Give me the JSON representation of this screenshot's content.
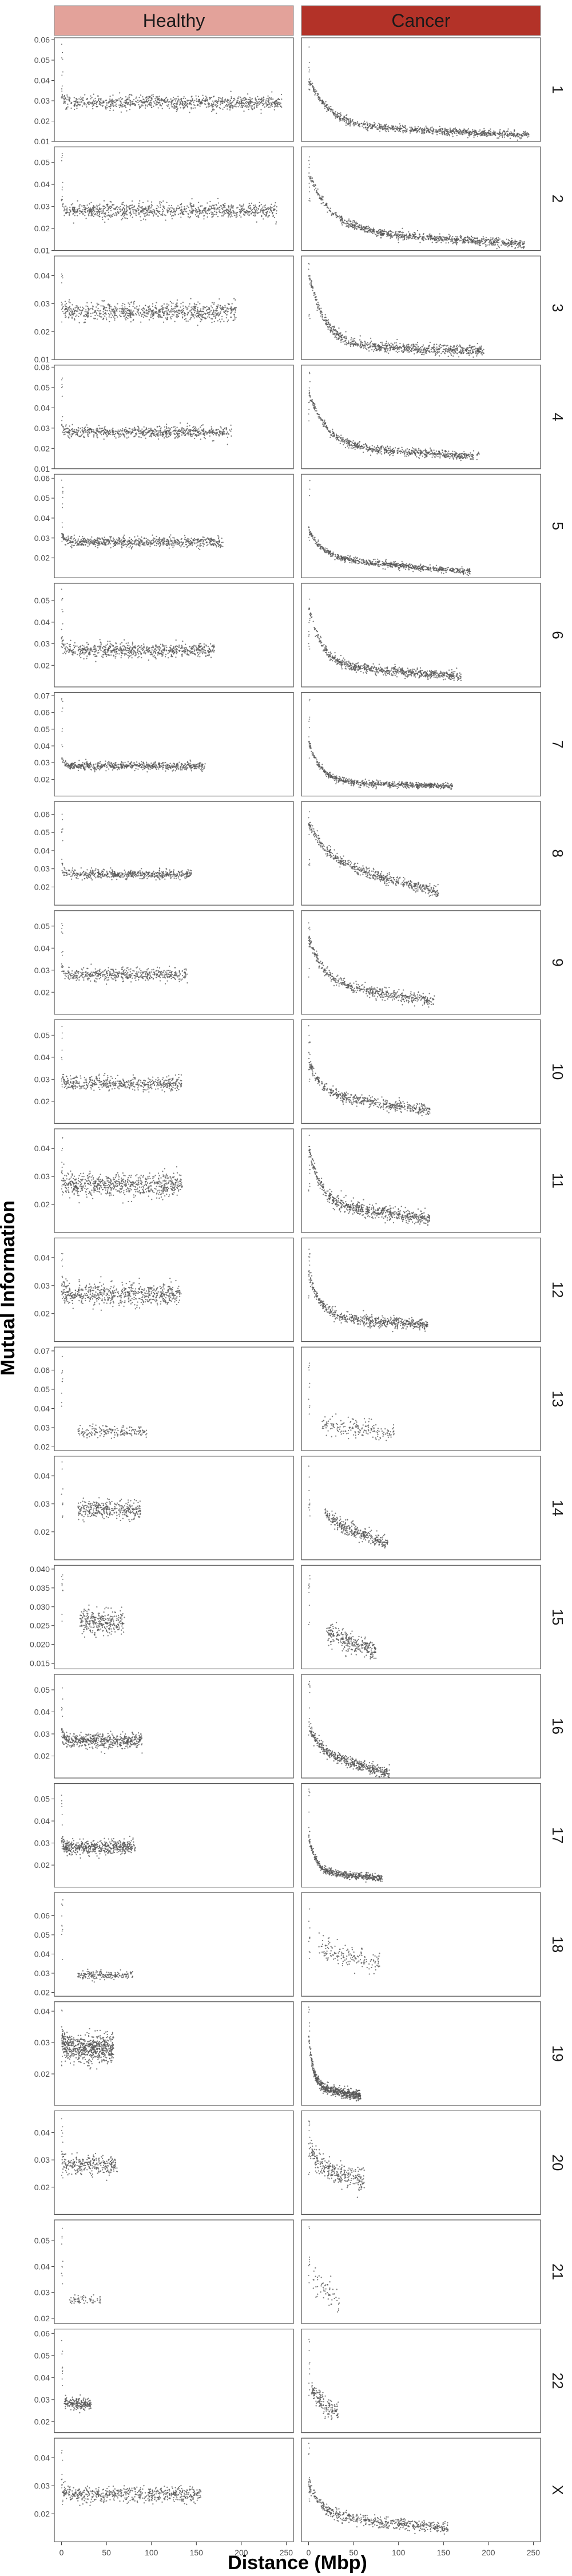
{
  "chart_data": {
    "type": "scatter",
    "title": "",
    "xlabel": "Distance (Mbp)",
    "ylabel": "Mutual Information",
    "columns": [
      "Healthy",
      "Cancer"
    ],
    "column_colors": [
      "#e3a29a",
      "#b33228"
    ],
    "point_color": "#555555",
    "grid": false,
    "x_ticks": [
      0,
      50,
      100,
      150,
      200,
      250
    ],
    "xlim": [
      -8,
      258
    ],
    "rows": [
      {
        "label": "1",
        "ylim": [
          0.01,
          0.061
        ],
        "yticks": [
          0.01,
          0.02,
          0.03,
          0.04,
          0.05,
          0.06
        ],
        "ytick_labels": [
          "0.01",
          "0.02",
          "0.03",
          "0.04",
          "0.05",
          "0.06"
        ],
        "healthy": {
          "xmax": 245,
          "d": 20,
          "tail_end": 0.029,
          "s": 0.0017,
          "n": 900
        },
        "cancer": {
          "xmax": 245,
          "h": 0.023,
          "tau": 22,
          "tail_start": 0.018,
          "tail_end": 0.013,
          "s": 0.0009,
          "n": 900
        }
      },
      {
        "label": "2",
        "ylim": [
          0.01,
          0.057
        ],
        "yticks": [
          0.01,
          0.02,
          0.03,
          0.04,
          0.05
        ],
        "ytick_labels": [
          "0.01",
          "0.02",
          "0.03",
          "0.04",
          "0.05"
        ],
        "healthy": {
          "xmax": 240,
          "d": 18,
          "tail_end": 0.028,
          "s": 0.0017,
          "n": 900
        },
        "cancer": {
          "xmax": 240,
          "h": 0.026,
          "tau": 25,
          "tail_start": 0.019,
          "tail_end": 0.013,
          "s": 0.0009,
          "n": 900
        }
      },
      {
        "label": "3",
        "ylim": [
          0.01,
          0.047
        ],
        "yticks": [
          0.01,
          0.02,
          0.03,
          0.04
        ],
        "ytick_labels": [
          "0.01",
          "0.02",
          "0.03",
          "0.04"
        ],
        "healthy": {
          "xmax": 195,
          "d": 17,
          "tail_end": 0.027,
          "s": 0.0016,
          "n": 800
        },
        "cancer": {
          "xmax": 195,
          "h": 0.026,
          "tau": 18,
          "tail_start": 0.015,
          "tail_end": 0.013,
          "s": 0.0009,
          "n": 800
        }
      },
      {
        "label": "4",
        "ylim": [
          0.01,
          0.061
        ],
        "yticks": [
          0.01,
          0.02,
          0.03,
          0.04,
          0.05,
          0.06
        ],
        "ytick_labels": [
          "0.01",
          "0.02",
          "0.03",
          "0.04",
          "0.05",
          "0.06"
        ],
        "healthy": {
          "xmax": 190,
          "d": 15,
          "tail_end": 0.028,
          "s": 0.0014,
          "n": 700
        },
        "cancer": {
          "xmax": 190,
          "h": 0.027,
          "tau": 20,
          "tail_start": 0.021,
          "tail_end": 0.016,
          "s": 0.001,
          "n": 700
        }
      },
      {
        "label": "5",
        "ylim": [
          0.01,
          0.062
        ],
        "yticks": [
          0.02,
          0.03,
          0.04,
          0.05,
          0.06
        ],
        "ytick_labels": [
          "0.02",
          "0.03",
          "0.04",
          "0.05",
          "0.06"
        ],
        "healthy": {
          "xmax": 180,
          "d": 15,
          "tail_end": 0.028,
          "s": 0.0013,
          "n": 700
        },
        "cancer": {
          "xmax": 180,
          "h": 0.014,
          "tau": 16,
          "tail_start": 0.02,
          "tail_end": 0.013,
          "s": 0.0008,
          "n": 700
        }
      },
      {
        "label": "6",
        "ylim": [
          0.01,
          0.058
        ],
        "yticks": [
          0.02,
          0.03,
          0.04,
          0.05
        ],
        "ytick_labels": [
          "0.02",
          "0.03",
          "0.04",
          "0.05"
        ],
        "healthy": {
          "xmax": 170,
          "d": 16,
          "tail_end": 0.027,
          "s": 0.0017,
          "n": 700
        },
        "cancer": {
          "xmax": 170,
          "h": 0.027,
          "tau": 15,
          "tail_start": 0.02,
          "tail_end": 0.015,
          "s": 0.0011,
          "n": 700
        }
      },
      {
        "label": "7",
        "ylim": [
          0.01,
          0.072
        ],
        "yticks": [
          0.02,
          0.03,
          0.04,
          0.05,
          0.06,
          0.07
        ],
        "ytick_labels": [
          "0.02",
          "0.03",
          "0.04",
          "0.05",
          "0.06",
          "0.07"
        ],
        "healthy": {
          "xmax": 160,
          "d": 14,
          "tail_end": 0.028,
          "s": 0.0012,
          "n": 650
        },
        "cancer": {
          "xmax": 160,
          "h": 0.025,
          "tau": 14,
          "tail_start": 0.018,
          "tail_end": 0.016,
          "s": 0.0009,
          "n": 650
        }
      },
      {
        "label": "8",
        "ylim": [
          0.01,
          0.067
        ],
        "yticks": [
          0.02,
          0.03,
          0.04,
          0.05,
          0.06
        ],
        "ytick_labels": [
          "0.02",
          "0.03",
          "0.04",
          "0.05",
          "0.06"
        ],
        "healthy": {
          "xmax": 145,
          "d": 14,
          "tail_end": 0.027,
          "s": 0.0012,
          "n": 550
        },
        "cancer": {
          "xmax": 145,
          "h": 0.02,
          "tau": 22,
          "tail_start": 0.035,
          "tail_end": 0.017,
          "s": 0.0015,
          "n": 550
        }
      },
      {
        "label": "9",
        "ylim": [
          0.01,
          0.057
        ],
        "yticks": [
          0.02,
          0.03,
          0.04,
          0.05
        ],
        "ytick_labels": [
          "0.02",
          "0.03",
          "0.04",
          "0.05"
        ],
        "healthy": {
          "xmax": 140,
          "d": 14,
          "tail_end": 0.028,
          "s": 0.0014,
          "n": 500
        },
        "cancer": {
          "xmax": 140,
          "h": 0.02,
          "tau": 18,
          "tail_start": 0.024,
          "tail_end": 0.016,
          "s": 0.0012,
          "n": 500
        }
      },
      {
        "label": "10",
        "ylim": [
          0.01,
          0.057
        ],
        "yticks": [
          0.02,
          0.03,
          0.04,
          0.05
        ],
        "ytick_labels": [
          "0.02",
          "0.03",
          "0.04",
          "0.05"
        ],
        "healthy": {
          "xmax": 135,
          "d": 14,
          "tail_end": 0.028,
          "s": 0.0015,
          "n": 500
        },
        "cancer": {
          "xmax": 135,
          "h": 0.015,
          "tau": 15,
          "tail_start": 0.023,
          "tail_end": 0.016,
          "s": 0.0012,
          "n": 500
        }
      },
      {
        "label": "11",
        "ylim": [
          0.01,
          0.047
        ],
        "yticks": [
          0.02,
          0.03,
          0.04
        ],
        "ytick_labels": [
          "0.02",
          "0.03",
          "0.04"
        ],
        "healthy": {
          "xmax": 135,
          "d": 13,
          "tail_end": 0.027,
          "s": 0.002,
          "n": 700
        },
        "cancer": {
          "xmax": 135,
          "h": 0.02,
          "tau": 14,
          "tail_start": 0.02,
          "tail_end": 0.015,
          "s": 0.0012,
          "n": 650
        }
      },
      {
        "label": "12",
        "ylim": [
          0.01,
          0.047
        ],
        "yticks": [
          0.02,
          0.03,
          0.04
        ],
        "ytick_labels": [
          "0.02",
          "0.03",
          "0.04"
        ],
        "healthy": {
          "xmax": 133,
          "d": 13,
          "tail_end": 0.027,
          "s": 0.002,
          "n": 650
        },
        "cancer": {
          "xmax": 133,
          "h": 0.016,
          "tau": 12,
          "tail_start": 0.019,
          "tail_end": 0.016,
          "s": 0.001,
          "n": 600
        }
      },
      {
        "label": "13",
        "ylim": [
          0.018,
          0.072
        ],
        "yticks": [
          0.02,
          0.03,
          0.04,
          0.05,
          0.06,
          0.07
        ],
        "ytick_labels": [
          "0.02",
          "0.03",
          "0.04",
          "0.05",
          "0.06",
          "0.07"
        ],
        "healthy": {
          "xmax": 95,
          "x0": 18,
          "d": 8,
          "tail_end": 0.028,
          "s": 0.0015,
          "n": 180
        },
        "cancer": {
          "xmax": 95,
          "x0": 15,
          "h": 0.004,
          "tau": 15,
          "tail_start": 0.032,
          "tail_end": 0.027,
          "s": 0.0025,
          "n": 180
        }
      },
      {
        "label": "14",
        "ylim": [
          0.01,
          0.047
        ],
        "yticks": [
          0.02,
          0.03,
          0.04
        ],
        "ytick_labels": [
          "0.02",
          "0.03",
          "0.04"
        ],
        "healthy": {
          "xmax": 88,
          "x0": 18,
          "d": 10,
          "tail_end": 0.028,
          "s": 0.0016,
          "n": 350
        },
        "cancer": {
          "xmax": 88,
          "x0": 18,
          "h": 0.012,
          "tau": 15,
          "tail_start": 0.025,
          "tail_end": 0.016,
          "s": 0.0012,
          "n": 350
        }
      },
      {
        "label": "15",
        "ylim": [
          0.0135,
          0.041
        ],
        "yticks": [
          0.015,
          0.02,
          0.025,
          0.03,
          0.035,
          0.04
        ],
        "ytick_labels": [
          "0.015",
          "0.020",
          "0.025",
          "0.030",
          "0.035",
          "0.040"
        ],
        "healthy": {
          "xmax": 70,
          "x0": 20,
          "d": 6,
          "tail_end": 0.026,
          "s": 0.0015,
          "n": 300
        },
        "cancer": {
          "xmax": 75,
          "x0": 20,
          "h": 0.004,
          "tau": 15,
          "tail_start": 0.024,
          "tail_end": 0.018,
          "s": 0.0013,
          "n": 300
        }
      },
      {
        "label": "16",
        "ylim": [
          0.01,
          0.057
        ],
        "yticks": [
          0.02,
          0.03,
          0.04,
          0.05
        ],
        "ytick_labels": [
          "0.02",
          "0.03",
          "0.04",
          "0.05"
        ],
        "healthy": {
          "xmax": 90,
          "d": 12,
          "tail_end": 0.027,
          "s": 0.0016,
          "n": 550
        },
        "cancer": {
          "xmax": 90,
          "h": 0.012,
          "tau": 12,
          "tail_start": 0.022,
          "tail_end": 0.012,
          "s": 0.0012,
          "n": 500
        }
      },
      {
        "label": "17",
        "ylim": [
          0.01,
          0.057
        ],
        "yticks": [
          0.02,
          0.03,
          0.04,
          0.05
        ],
        "ytick_labels": [
          "0.02",
          "0.03",
          "0.04",
          "0.05"
        ],
        "healthy": {
          "xmax": 82,
          "d": 12,
          "tail_end": 0.028,
          "s": 0.0016,
          "n": 550
        },
        "cancer": {
          "xmax": 82,
          "h": 0.016,
          "tau": 8,
          "tail_start": 0.017,
          "tail_end": 0.014,
          "s": 0.0008,
          "n": 500
        }
      },
      {
        "label": "18",
        "ylim": [
          0.018,
          0.072
        ],
        "yticks": [
          0.02,
          0.03,
          0.04,
          0.05,
          0.06
        ],
        "ytick_labels": [
          "0.02",
          "0.03",
          "0.04",
          "0.05",
          "0.06"
        ],
        "healthy": {
          "xmax": 80,
          "x0": 18,
          "d": 8,
          "tail_end": 0.029,
          "s": 0.0012,
          "n": 180
        },
        "cancer": {
          "xmax": 80,
          "x0": 10,
          "h": 0.004,
          "tau": 15,
          "tail_start": 0.043,
          "tail_end": 0.036,
          "s": 0.003,
          "n": 160
        }
      },
      {
        "label": "19",
        "ylim": [
          0.01,
          0.043
        ],
        "yticks": [
          0.02,
          0.03,
          0.04
        ],
        "ytick_labels": [
          "0.02",
          "0.03",
          "0.04"
        ],
        "healthy": {
          "xmax": 58,
          "d": 8,
          "tail_end": 0.028,
          "s": 0.0022,
          "n": 700
        },
        "cancer": {
          "xmax": 58,
          "h": 0.017,
          "tau": 5,
          "tail_start": 0.016,
          "tail_end": 0.013,
          "s": 0.0008,
          "n": 600
        }
      },
      {
        "label": "20",
        "ylim": [
          0.01,
          0.048
        ],
        "yticks": [
          0.02,
          0.03,
          0.04
        ],
        "ytick_labels": [
          "0.02",
          "0.03",
          "0.04"
        ],
        "healthy": {
          "xmax": 62,
          "d": 8,
          "tail_end": 0.028,
          "s": 0.0017,
          "n": 300
        },
        "cancer": {
          "xmax": 62,
          "h": 0.008,
          "tau": 12,
          "tail_start": 0.027,
          "tail_end": 0.022,
          "s": 0.002,
          "n": 300
        }
      },
      {
        "label": "21",
        "ylim": [
          0.018,
          0.058
        ],
        "yticks": [
          0.02,
          0.03,
          0.04,
          0.05
        ],
        "ytick_labels": [
          "0.02",
          "0.03",
          "0.04",
          "0.05"
        ],
        "healthy": {
          "xmax": 45,
          "x0": 8,
          "d": 6,
          "tail_end": 0.027,
          "s": 0.001,
          "n": 60
        },
        "cancer": {
          "xmax": 35,
          "x0": 5,
          "h": 0.004,
          "tau": 10,
          "tail_start": 0.034,
          "tail_end": 0.026,
          "s": 0.003,
          "n": 60
        }
      },
      {
        "label": "22",
        "ylim": [
          0.015,
          0.062
        ],
        "yticks": [
          0.02,
          0.03,
          0.04,
          0.05,
          0.06
        ],
        "ytick_labels": [
          "0.02",
          "0.03",
          "0.04",
          "0.05",
          "0.06"
        ],
        "healthy": {
          "xmax": 33,
          "x0": 3,
          "d": 6,
          "tail_end": 0.028,
          "s": 0.0012,
          "n": 200
        },
        "cancer": {
          "xmax": 33,
          "x0": 3,
          "h": 0.008,
          "tau": 8,
          "tail_start": 0.03,
          "tail_end": 0.024,
          "s": 0.0022,
          "n": 160
        }
      },
      {
        "label": "X",
        "ylim": [
          0.01,
          0.047
        ],
        "yticks": [
          0.02,
          0.03,
          0.04
        ],
        "ytick_labels": [
          "0.02",
          "0.03",
          "0.04"
        ],
        "healthy": {
          "xmax": 155,
          "d": 14,
          "tail_end": 0.027,
          "s": 0.0014,
          "n": 600
        },
        "cancer": {
          "xmax": 155,
          "h": 0.012,
          "tau": 15,
          "tail_start": 0.019,
          "tail_end": 0.015,
          "s": 0.001,
          "n": 550
        }
      }
    ]
  }
}
